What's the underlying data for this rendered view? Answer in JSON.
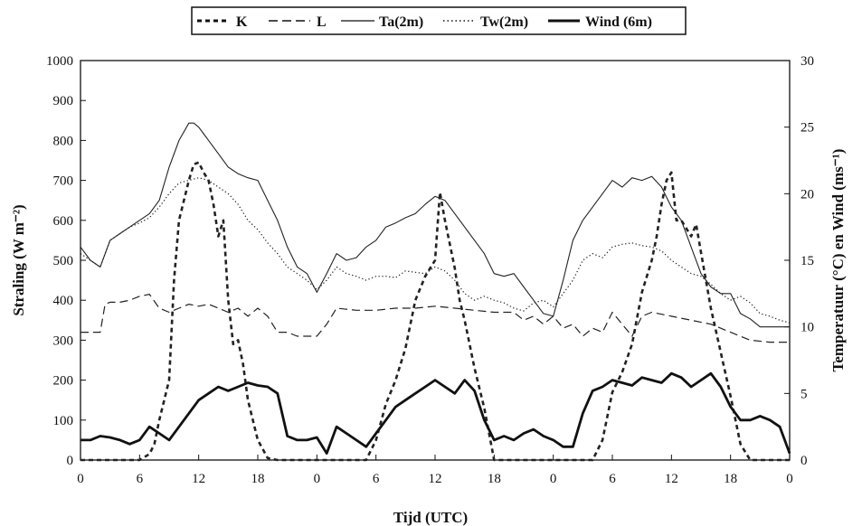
{
  "chart_data": {
    "type": "line",
    "xlabel": "Tijd (UTC)",
    "ylabel_left": "Straling (W m⁻²)",
    "ylabel_right": "Temperatuur (°C) en Wind (ms⁻¹)",
    "x_tick_labels": [
      "0",
      "6",
      "12",
      "18",
      "0",
      "6",
      "12",
      "18",
      "0",
      "6",
      "12",
      "18",
      "0"
    ],
    "xlim": [
      0,
      72
    ],
    "ylim_left": [
      0,
      1000
    ],
    "ylim_right": [
      0,
      30
    ],
    "y_left_ticks": [
      0,
      100,
      200,
      300,
      400,
      500,
      600,
      700,
      800,
      900,
      1000
    ],
    "y_right_ticks": [
      0,
      5,
      10,
      15,
      20,
      25,
      30
    ],
    "legend": [
      "K",
      "L",
      "Ta(2m)",
      "Tw(2m)",
      "Wind (6m)"
    ],
    "grid": false,
    "series": [
      {
        "name": "K",
        "axis": "left",
        "style": "dotted-bold",
        "x": [
          0,
          5,
          6,
          7,
          7.5,
          8,
          9,
          9.5,
          10,
          11,
          11.5,
          12,
          12.5,
          13,
          13.5,
          14,
          14.5,
          15,
          15.5,
          16,
          16.5,
          17,
          18,
          19,
          20,
          24,
          29,
          30,
          31,
          32,
          33,
          34,
          35,
          36,
          36.5,
          37,
          38,
          38.5,
          39,
          40,
          41,
          42,
          48,
          52,
          53,
          54,
          55,
          56,
          57,
          58,
          58.5,
          59,
          59.5,
          60,
          60.5,
          61,
          61.5,
          62,
          62.5,
          63,
          64,
          65,
          66,
          67,
          68,
          72
        ],
        "y": [
          0,
          0,
          0,
          15,
          40,
          100,
          200,
          450,
          600,
          700,
          740,
          745,
          720,
          700,
          640,
          560,
          600,
          400,
          290,
          300,
          240,
          150,
          50,
          5,
          0,
          0,
          0,
          50,
          140,
          200,
          280,
          400,
          460,
          500,
          670,
          600,
          480,
          400,
          350,
          230,
          130,
          0,
          0,
          0,
          50,
          170,
          220,
          290,
          420,
          500,
          560,
          640,
          700,
          720,
          600,
          600,
          580,
          560,
          590,
          520,
          380,
          270,
          160,
          40,
          0,
          0
        ]
      },
      {
        "name": "L",
        "axis": "left",
        "style": "dashed",
        "x": [
          0,
          2,
          2.5,
          3,
          4,
          5,
          6,
          7,
          8,
          9,
          10,
          11,
          12,
          13,
          14,
          15,
          16,
          17,
          18,
          19,
          20,
          21,
          22,
          23,
          24,
          25,
          26,
          28,
          30,
          32,
          34,
          36,
          38,
          40,
          42,
          44,
          45,
          46,
          47,
          48,
          49,
          50,
          51,
          52,
          53,
          54,
          55,
          56,
          57,
          58,
          60,
          62,
          64,
          66,
          68,
          70,
          72
        ],
        "y": [
          320,
          320,
          390,
          395,
          395,
          400,
          410,
          415,
          380,
          370,
          380,
          390,
          385,
          390,
          380,
          370,
          380,
          360,
          380,
          360,
          320,
          320,
          310,
          310,
          310,
          340,
          380,
          375,
          375,
          380,
          380,
          385,
          380,
          375,
          370,
          370,
          350,
          360,
          340,
          360,
          330,
          340,
          310,
          330,
          320,
          370,
          340,
          310,
          360,
          370,
          360,
          350,
          340,
          320,
          300,
          295,
          295
        ]
      },
      {
        "name": "Ta(2m)",
        "axis": "right",
        "x": [
          0,
          1,
          2,
          3,
          4,
          5,
          6,
          7,
          8,
          9,
          10,
          11,
          11.5,
          12,
          12.5,
          13,
          14,
          15,
          16,
          17,
          18,
          19,
          20,
          21,
          22,
          23,
          24,
          25,
          26,
          27,
          28,
          29,
          30,
          31,
          32,
          33,
          34,
          35,
          36,
          37,
          38,
          39,
          40,
          41,
          42,
          43,
          44,
          45,
          46,
          47,
          48,
          49,
          50,
          51,
          52,
          53,
          54,
          55,
          56,
          57,
          58,
          59,
          60,
          61,
          62,
          63,
          64,
          65,
          66,
          67,
          68,
          69,
          70,
          71,
          72
        ],
        "y": [
          16,
          15,
          14.5,
          16.5,
          17,
          17.5,
          18,
          18.5,
          19.5,
          22,
          24,
          25.3,
          25.3,
          25,
          24.5,
          24,
          23,
          22,
          21.5,
          21.2,
          21,
          19.5,
          18,
          16,
          14.5,
          14,
          12.6,
          14,
          15.5,
          15,
          15.2,
          16,
          16.5,
          17.5,
          17.8,
          18.2,
          18.5,
          19.2,
          19.8,
          19.5,
          18.5,
          17.5,
          16.5,
          15.5,
          14,
          13.8,
          14,
          13,
          12,
          11,
          10.8,
          13.5,
          16.5,
          18,
          19,
          20,
          21,
          20.5,
          21.2,
          21,
          21.3,
          20.5,
          19,
          18,
          16,
          14,
          13,
          12.5,
          12.5,
          11,
          10.6,
          10,
          10,
          10,
          10
        ]
      },
      {
        "name": "Tw(2m)",
        "axis": "right",
        "style": "dotted",
        "x": [
          0,
          1,
          2,
          3,
          4,
          5,
          6,
          7,
          8,
          9,
          10,
          11,
          12,
          13,
          14,
          15,
          16,
          17,
          18,
          19,
          20,
          21,
          22,
          23,
          24,
          25,
          26,
          27,
          28,
          29,
          30,
          31,
          32,
          33,
          34,
          35,
          36,
          37,
          38,
          39,
          40,
          41,
          42,
          43,
          44,
          45,
          46,
          47,
          48,
          49,
          50,
          51,
          52,
          53,
          54,
          55,
          56,
          57,
          58,
          59,
          60,
          61,
          62,
          63,
          64,
          65,
          66,
          67,
          68,
          69,
          70,
          71,
          72
        ],
        "y": [
          15.5,
          15,
          14.5,
          16.5,
          17,
          17.5,
          17.8,
          18.2,
          19,
          20,
          20.8,
          21,
          21.2,
          21,
          20.5,
          20,
          19.2,
          18,
          17.3,
          16.3,
          15.5,
          14.5,
          14,
          13.5,
          12.8,
          13.5,
          14.5,
          14,
          13.8,
          13.5,
          13.8,
          13.8,
          13.7,
          14.2,
          14.1,
          14,
          14.5,
          14.2,
          13.5,
          12.5,
          12,
          12.3,
          12,
          11.8,
          11.4,
          11.2,
          11.8,
          12,
          11.5,
          12.5,
          13.5,
          15,
          15.5,
          15.2,
          16,
          16.2,
          16.3,
          16.1,
          16,
          15.7,
          15,
          14.5,
          14,
          13.8,
          13.2,
          12.5,
          12,
          12.3,
          11.8,
          11,
          10.8,
          10.5,
          10.3
        ]
      },
      {
        "name": "Wind (6m)",
        "axis": "right",
        "style": "solid-bold",
        "x": [
          0,
          1,
          2,
          3,
          4,
          5,
          6,
          7,
          8,
          9,
          10,
          11,
          12,
          13,
          14,
          15,
          16,
          17,
          18,
          19,
          20,
          21,
          22,
          23,
          24,
          25,
          26,
          27,
          28,
          29,
          30,
          31,
          32,
          33,
          34,
          35,
          36,
          37,
          38,
          39,
          40,
          41,
          42,
          43,
          44,
          45,
          46,
          47,
          48,
          49,
          50,
          51,
          52,
          53,
          54,
          55,
          56,
          57,
          58,
          59,
          60,
          61,
          62,
          63,
          64,
          65,
          66,
          67,
          68,
          69,
          70,
          71,
          72
        ],
        "y": [
          1.5,
          1.5,
          1.8,
          1.7,
          1.5,
          1.2,
          1.5,
          2.5,
          2,
          1.5,
          2.5,
          3.5,
          4.5,
          5,
          5.5,
          5.2,
          5.5,
          5.8,
          5.6,
          5.5,
          5,
          1.8,
          1.5,
          1.5,
          1.7,
          0.5,
          2.5,
          2,
          1.5,
          1,
          2,
          3,
          4,
          4.5,
          5,
          5.5,
          6,
          5.5,
          5,
          6,
          5.2,
          3,
          1.5,
          1.8,
          1.5,
          2,
          2.3,
          1.8,
          1.5,
          1,
          1,
          3.5,
          5.2,
          5.5,
          6,
          5.8,
          5.6,
          6.2,
          6,
          5.8,
          6.5,
          6.2,
          5.5,
          6,
          6.5,
          5.5,
          4,
          3,
          3,
          3.3,
          3,
          2.5,
          0.5
        ]
      }
    ]
  }
}
